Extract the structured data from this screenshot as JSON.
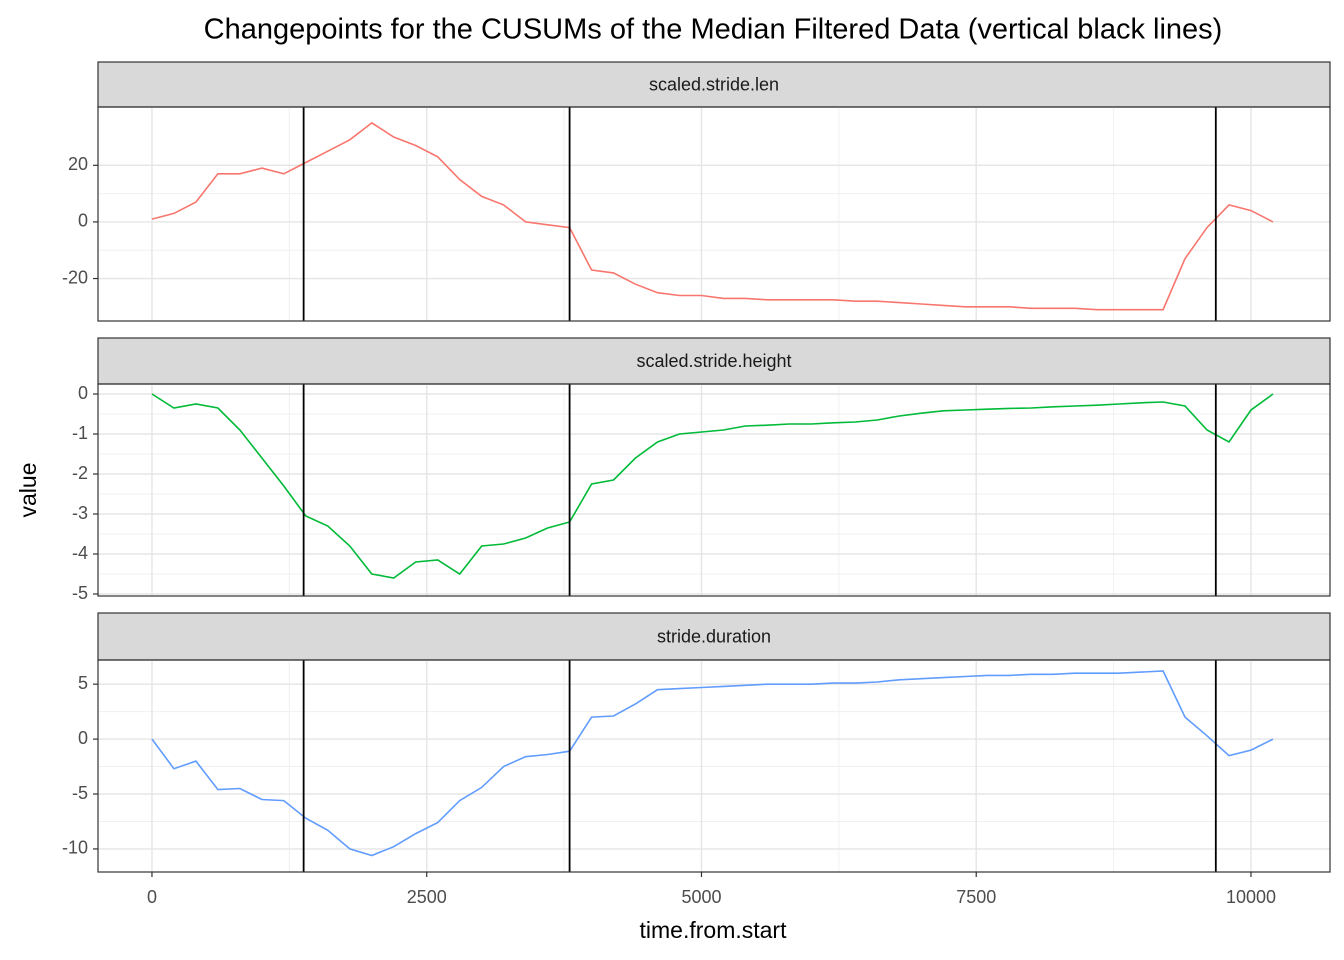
{
  "title": "Changepoints for the CUSUMs of the Median Filtered Data (vertical black lines)",
  "x_label": "time.from.start",
  "y_label": "value",
  "chart_data": [
    {
      "type": "line",
      "title": "scaled.stride.len",
      "color": "#F8766D",
      "x": [
        0,
        200,
        400,
        600,
        800,
        1000,
        1200,
        1400,
        1600,
        1800,
        2000,
        2200,
        2400,
        2600,
        2800,
        3000,
        3200,
        3400,
        3600,
        3800,
        4000,
        4200,
        4400,
        4600,
        4800,
        5000,
        5200,
        5400,
        5600,
        5800,
        6000,
        6200,
        6400,
        6600,
        6800,
        7000,
        7200,
        7400,
        7600,
        7800,
        8000,
        8200,
        8400,
        8600,
        8800,
        9000,
        9200,
        9400,
        9600,
        9800,
        10000,
        10200
      ],
      "values": [
        1,
        3,
        7,
        17,
        17,
        19,
        17,
        21,
        25,
        29,
        35,
        30,
        27,
        23,
        15,
        9,
        6,
        0,
        -1,
        -2,
        -17,
        -18,
        -22,
        -25,
        -26,
        -26,
        -27,
        -27,
        -27.5,
        -27.5,
        -27.5,
        -27.5,
        -28,
        -28,
        -28.5,
        -29,
        -29.5,
        -30,
        -30,
        -30,
        -30.5,
        -30.5,
        -30.5,
        -31,
        -31,
        -31,
        -31,
        -13,
        -2,
        6,
        4,
        0
      ],
      "changepoints": [
        1380,
        3800,
        9680
      ],
      "xlim": [
        -491,
        10719
      ],
      "xticks": [
        0,
        2500,
        5000,
        7500,
        10000
      ],
      "ylim": [
        -35,
        40.6
      ],
      "yticks": [
        -20,
        0,
        20
      ],
      "grid": true
    },
    {
      "type": "line",
      "title": "scaled.stride.height",
      "color": "#00BA38",
      "x": [
        0,
        200,
        400,
        600,
        800,
        1000,
        1200,
        1400,
        1600,
        1800,
        2000,
        2200,
        2400,
        2600,
        2800,
        3000,
        3200,
        3400,
        3600,
        3800,
        4000,
        4200,
        4400,
        4600,
        4800,
        5000,
        5200,
        5400,
        5600,
        5800,
        6000,
        6200,
        6400,
        6600,
        6800,
        7000,
        7200,
        7400,
        7600,
        7800,
        8000,
        8200,
        8400,
        8600,
        8800,
        9000,
        9200,
        9400,
        9600,
        9800,
        10000,
        10200
      ],
      "values": [
        0,
        -0.35,
        -0.25,
        -0.35,
        -0.9,
        -1.6,
        -2.3,
        -3.05,
        -3.3,
        -3.8,
        -4.5,
        -4.6,
        -4.2,
        -4.15,
        -4.5,
        -3.8,
        -3.75,
        -3.6,
        -3.35,
        -3.2,
        -2.25,
        -2.15,
        -1.6,
        -1.2,
        -1.0,
        -0.95,
        -0.9,
        -0.8,
        -0.78,
        -0.75,
        -0.75,
        -0.72,
        -0.7,
        -0.65,
        -0.55,
        -0.48,
        -0.42,
        -0.4,
        -0.38,
        -0.36,
        -0.35,
        -0.32,
        -0.3,
        -0.28,
        -0.25,
        -0.22,
        -0.2,
        -0.3,
        -0.9,
        -1.2,
        -0.4,
        0
      ],
      "changepoints": [
        1380,
        3800,
        9680
      ],
      "xlim": [
        -491,
        10719
      ],
      "xticks": [
        0,
        2500,
        5000,
        7500,
        10000
      ],
      "ylim": [
        -5.05,
        0.25
      ],
      "yticks": [
        -5,
        -4,
        -3,
        -2,
        -1,
        0
      ],
      "grid": true
    },
    {
      "type": "line",
      "title": "stride.duration",
      "color": "#619CFF",
      "x": [
        0,
        200,
        400,
        600,
        800,
        1000,
        1200,
        1400,
        1600,
        1800,
        2000,
        2200,
        2400,
        2600,
        2800,
        3000,
        3200,
        3400,
        3600,
        3800,
        4000,
        4200,
        4400,
        4600,
        4800,
        5000,
        5200,
        5400,
        5600,
        5800,
        6000,
        6200,
        6400,
        6600,
        6800,
        7000,
        7200,
        7400,
        7600,
        7800,
        8000,
        8200,
        8400,
        8600,
        8800,
        9000,
        9200,
        9400,
        9600,
        9800,
        10000,
        10200
      ],
      "values": [
        0,
        -2.7,
        -2.0,
        -4.6,
        -4.5,
        -5.5,
        -5.6,
        -7.2,
        -8.3,
        -10,
        -10.6,
        -9.8,
        -8.6,
        -7.6,
        -5.6,
        -4.4,
        -2.5,
        -1.6,
        -1.4,
        -1.1,
        2.0,
        2.1,
        3.2,
        4.5,
        4.6,
        4.7,
        4.8,
        4.9,
        5.0,
        5.0,
        5.0,
        5.1,
        5.1,
        5.2,
        5.4,
        5.5,
        5.6,
        5.7,
        5.8,
        5.8,
        5.9,
        5.9,
        6.0,
        6.0,
        6.0,
        6.1,
        6.2,
        2.0,
        0.3,
        -1.5,
        -1.0,
        0
      ],
      "changepoints": [
        1380,
        3800,
        9680
      ],
      "xlim": [
        -491,
        10719
      ],
      "xticks": [
        0,
        2500,
        5000,
        7500,
        10000
      ],
      "ylim": [
        -12.1,
        7.2
      ],
      "yticks": [
        -10,
        -5,
        0,
        5
      ],
      "grid": true
    }
  ]
}
